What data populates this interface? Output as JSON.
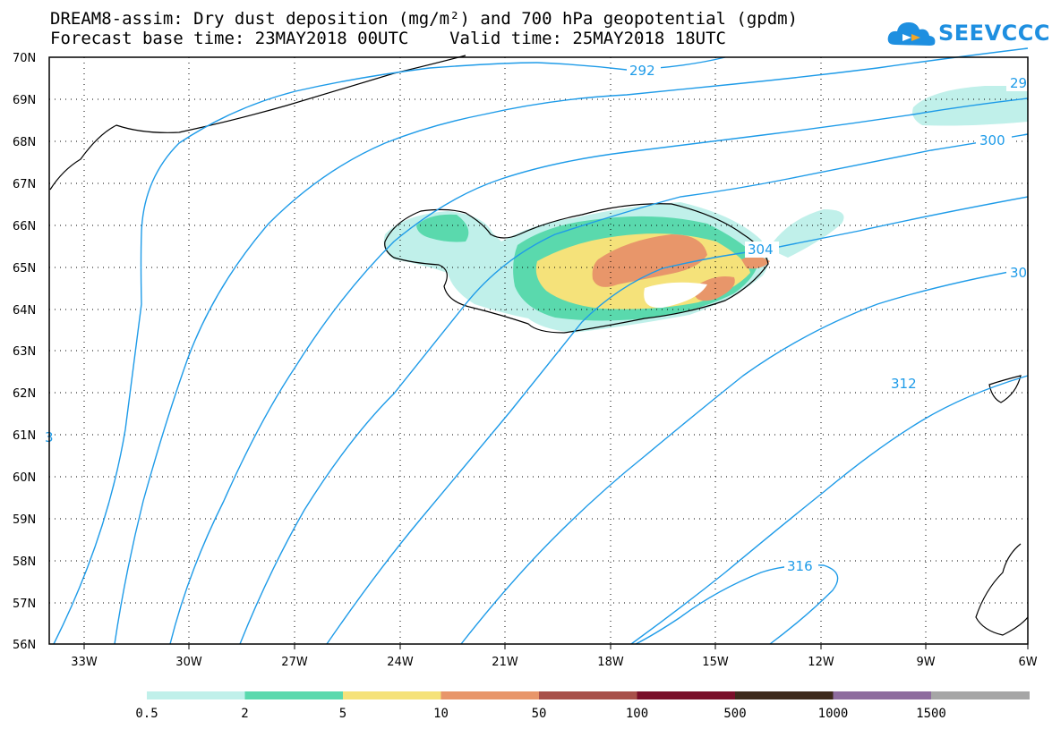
{
  "header": {
    "title_line1": "DREAM8-assim: Dry dust deposition (mg/m²) and 700 hPa geopotential (gpdm)",
    "title_line2": "Forecast base time: 23MAY2018 00UTC    Valid time: 25MAY2018 18UTC",
    "logo_text": "SEEVCCC"
  },
  "axes": {
    "lat_labels": [
      "70N",
      "69N",
      "68N",
      "67N",
      "66N",
      "65N",
      "64N",
      "63N",
      "62N",
      "61N",
      "60N",
      "59N",
      "58N",
      "57N",
      "56N"
    ],
    "lon_labels": [
      "33W",
      "30W",
      "27W",
      "24W",
      "21W",
      "18W",
      "15W",
      "12W",
      "9W",
      "6W"
    ]
  },
  "contours": {
    "color": "#1e9be8",
    "labels": [
      "292",
      "29",
      "300",
      "304",
      "30",
      "312",
      "316",
      "3"
    ]
  },
  "legend": {
    "colors": [
      "#c0f0ea",
      "#5ad9ad",
      "#f5e27a",
      "#e8966a",
      "#a8504a",
      "#7a0f2a",
      "#3e2a1c",
      "#8e6c9e",
      "#a6a6a6"
    ],
    "labels": [
      "0.5",
      "2",
      "5",
      "10",
      "50",
      "100",
      "500",
      "1000",
      "1500"
    ]
  }
}
